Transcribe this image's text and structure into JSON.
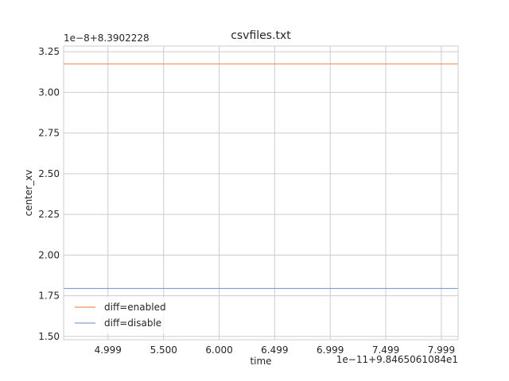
{
  "chart_data": {
    "type": "line",
    "title": "csvfiles.txt",
    "xlabel": "time",
    "ylabel": "center_xv",
    "x_offset_label": "1e−11+9.8465061084e1",
    "y_offset_label": "1e−8+8.3902228",
    "xlim": [
      4.6,
      8.15
    ],
    "ylim": [
      1.48,
      3.285
    ],
    "x_ticks": [
      4.999,
      5.5,
      6.0,
      6.499,
      6.999,
      7.499,
      7.999
    ],
    "x_tick_labels": [
      "4.999",
      "5.500",
      "6.000",
      "6.499",
      "6.999",
      "7.499",
      "7.999"
    ],
    "y_ticks": [
      1.5,
      1.75,
      2.0,
      2.25,
      2.5,
      2.75,
      3.0,
      3.25
    ],
    "y_tick_labels": [
      "1.50",
      "1.75",
      "2.00",
      "2.25",
      "2.50",
      "2.75",
      "3.00",
      "3.25"
    ],
    "grid": true,
    "legend_position": "lower-left",
    "series": [
      {
        "name": "diff=enabled",
        "color": "#f28e5c",
        "x": [
          4.6,
          8.15
        ],
        "y": [
          3.175,
          3.175
        ]
      },
      {
        "name": "diff=disable",
        "color": "#7f9fd4",
        "x": [
          4.6,
          8.15
        ],
        "y": [
          1.795,
          1.795
        ]
      }
    ]
  }
}
